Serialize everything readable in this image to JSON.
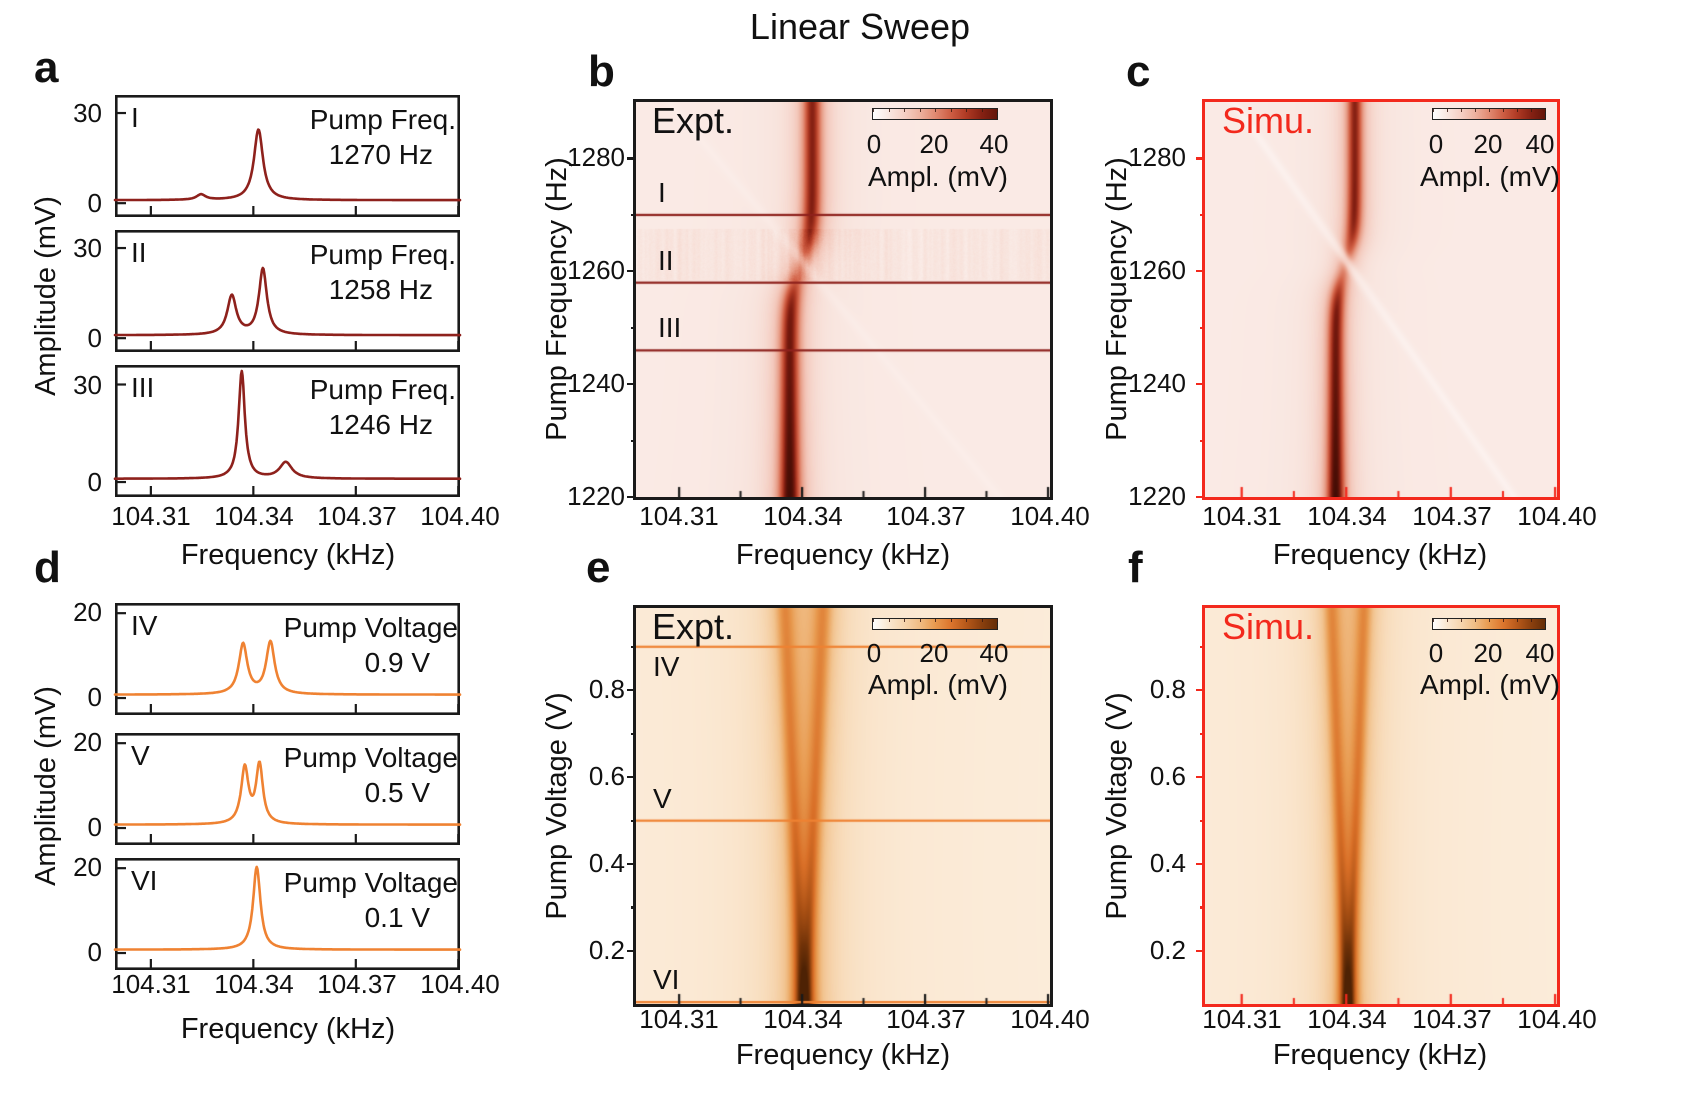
{
  "title": "Linear Sweep",
  "colors": {
    "black": "#1a1a1a",
    "dark_red": "#8e211c",
    "orange": "#ef8232",
    "accent_red": "#f3291d",
    "background": "#ffffff"
  },
  "x_axis": {
    "label": "Frequency (kHz)",
    "tick_labels": [
      "104.31",
      "104.34",
      "104.37",
      "104.40"
    ],
    "tick_values": [
      104.31,
      104.34,
      104.37,
      104.4
    ],
    "minor_tick_values": [
      104.325,
      104.355,
      104.385
    ],
    "range": [
      104.2995,
      104.4005
    ]
  },
  "colorbar": {
    "tick_labels": [
      "0",
      "20",
      "40"
    ],
    "label": "Ampl. (mV)",
    "range": [
      0,
      40
    ]
  },
  "heat_colormaps": {
    "red": [
      [
        0,
        "#ffffff"
      ],
      [
        3,
        "#fbeeea"
      ],
      [
        6,
        "#f8e3dc"
      ],
      [
        12,
        "#f3c7ba"
      ],
      [
        18,
        "#e79c86"
      ],
      [
        24,
        "#d4654a"
      ],
      [
        30,
        "#b03a24"
      ],
      [
        36,
        "#7e1c10"
      ],
      [
        42,
        "#561107"
      ],
      [
        48,
        "#3f0b04"
      ]
    ],
    "orange": [
      [
        0,
        "#ffffff"
      ],
      [
        4,
        "#fbead6"
      ],
      [
        8,
        "#f8ddbd"
      ],
      [
        14,
        "#f2c490"
      ],
      [
        20,
        "#e89a4f"
      ],
      [
        26,
        "#d96f27"
      ],
      [
        32,
        "#a64e13"
      ],
      [
        38,
        "#703208"
      ],
      [
        44,
        "#4e2204"
      ]
    ]
  },
  "panels": {
    "a": {
      "letter": "a",
      "ylabel": "Amplitude (mV)",
      "ytick_hi": "30",
      "ytick_lo": "0"
    },
    "b": {
      "letter": "b",
      "label": "Expt.",
      "ylabel": "Pump Frequency (Hz)",
      "ytick_labels": [
        "1280",
        "1260",
        "1240",
        "1220"
      ]
    },
    "c": {
      "letter": "c",
      "label": "Simu.",
      "ylabel": "Pump Frequency (Hz)",
      "ytick_labels": [
        "1280",
        "1260",
        "1240",
        "1220"
      ]
    },
    "d": {
      "letter": "d",
      "ylabel": "Amplitude (mV)",
      "ytick_hi": "20",
      "ytick_lo": "0"
    },
    "e": {
      "letter": "e",
      "label": "Expt.",
      "ylabel": "Pump Voltage (V)",
      "ytick_labels": [
        "0.8",
        "0.6",
        "0.4",
        "0.2"
      ]
    },
    "f": {
      "letter": "f",
      "label": "Simu.",
      "ylabel": "Pump Voltage (V)",
      "ytick_labels": [
        "0.8",
        "0.6",
        "0.4",
        "0.2"
      ]
    }
  },
  "chart_data": [
    {
      "id": "a",
      "type": "line",
      "color_key": "dark_red",
      "xlabel": "Frequency (kHz)",
      "ylabel": "Amplitude (mV)",
      "y_range": [
        -4.6,
        36
      ],
      "y_ticks": [
        0,
        30
      ],
      "series": [
        {
          "name": "I",
          "annotation": [
            "Pump Freq.",
            "1270 Hz"
          ],
          "baseline": 1,
          "peaks": [
            {
              "c": 104.3415,
              "h": 23.5,
              "w": 0.0016
            },
            {
              "c": 104.3247,
              "h": 1.8,
              "w": 0.0016
            }
          ]
        },
        {
          "name": "II",
          "annotation": [
            "Pump Freq.",
            "1258 Hz"
          ],
          "baseline": 1,
          "peaks": [
            {
              "c": 104.3337,
              "h": 13.0,
              "w": 0.0016
            },
            {
              "c": 104.3428,
              "h": 22.0,
              "w": 0.0014
            }
          ]
        },
        {
          "name": "III",
          "annotation": [
            "Pump Freq.",
            "1246 Hz"
          ],
          "baseline": 1,
          "peaks": [
            {
              "c": 104.3366,
              "h": 33.0,
              "w": 0.0011
            },
            {
              "c": 104.3495,
              "h": 5.0,
              "w": 0.0022
            }
          ]
        }
      ]
    },
    {
      "id": "b",
      "type": "heatmap",
      "variant": "crossing",
      "colormap": "red",
      "label": "Expt.",
      "ylabel": "Pump Frequency (Hz)",
      "y_range": [
        1220,
        1290
      ],
      "y_ticks": [
        1220,
        1240,
        1260,
        1280
      ],
      "y_minor_ticks": [
        1230,
        1250,
        1270
      ],
      "marker_lines": [
        {
          "value": 1270,
          "label": "I",
          "side": "above"
        },
        {
          "value": 1258,
          "label": "II",
          "side": "above"
        },
        {
          "value": 1246,
          "label": "III",
          "side": "above"
        }
      ],
      "noise": true,
      "line_color_key": "dark_red",
      "axis_color_key": "black",
      "label_color_key": "black",
      "model": {
        "crossing_pump": 1261,
        "f_mid": 104.33975,
        "f_shift": 0.00275,
        "tanh_width": 5.5,
        "amp_base": 30,
        "amp_boost": 13,
        "amp_decay": 26,
        "dip_depth": 0.5,
        "dip_width": 5,
        "lor_width": 0.00215,
        "width_boost": 0.0005,
        "baseline": 4,
        "diag_f0": 104.341,
        "diag_slope": 0.00115,
        "diag_width": 0.0017,
        "diag_depth": 0.28
      }
    },
    {
      "id": "c",
      "type": "heatmap",
      "variant": "crossing",
      "colormap": "red",
      "label": "Simu.",
      "ylabel": "Pump Frequency (Hz)",
      "y_range": [
        1220,
        1290
      ],
      "y_ticks": [
        1220,
        1240,
        1260,
        1280
      ],
      "y_minor_ticks": [
        1230,
        1250,
        1270
      ],
      "marker_lines": [],
      "noise": false,
      "line_color_key": "dark_red",
      "axis_color_key": "accent_red",
      "label_color_key": "accent_red",
      "model": {
        "crossing_pump": 1261,
        "f_mid": 104.33975,
        "f_shift": 0.00275,
        "tanh_width": 5.5,
        "amp_base": 30,
        "amp_boost": 13,
        "amp_decay": 26,
        "dip_depth": 0.5,
        "dip_width": 5,
        "lor_width": 0.00215,
        "width_boost": 0.0005,
        "baseline": 4,
        "diag_f0": 104.341,
        "diag_slope": 0.00115,
        "diag_width": 0.0017,
        "diag_depth": 0.55
      }
    },
    {
      "id": "d",
      "type": "line",
      "color_key": "orange",
      "xlabel": "Frequency (kHz)",
      "ylabel": "Amplitude (mV)",
      "y_range": [
        -4,
        22.4
      ],
      "y_ticks": [
        0,
        20
      ],
      "series": [
        {
          "name": "IV",
          "annotation": [
            "Pump Voltage",
            "0.9 V"
          ],
          "baseline": 0.8,
          "peaks": [
            {
              "c": 104.337,
              "h": 11.8,
              "w": 0.0015
            },
            {
              "c": 104.345,
              "h": 12.3,
              "w": 0.0015
            }
          ]
        },
        {
          "name": "V",
          "annotation": [
            "Pump Voltage",
            "0.5 V"
          ],
          "baseline": 0.8,
          "peaks": [
            {
              "c": 104.3375,
              "h": 13.2,
              "w": 0.0013
            },
            {
              "c": 104.3418,
              "h": 13.8,
              "w": 0.0012
            }
          ]
        },
        {
          "name": "VI",
          "annotation": [
            "Pump Voltage",
            "0.1 V"
          ],
          "baseline": 0.8,
          "peaks": [
            {
              "c": 104.341,
              "h": 19.5,
              "w": 0.0013
            }
          ]
        }
      ]
    },
    {
      "id": "e",
      "type": "heatmap",
      "variant": "split",
      "colormap": "orange",
      "label": "Expt.",
      "ylabel": "Pump Voltage (V)",
      "y_range": [
        0.078,
        0.989
      ],
      "y_ticks": [
        0.2,
        0.4,
        0.6,
        0.8
      ],
      "y_minor_ticks": [
        0.3,
        0.5,
        0.7,
        0.9
      ],
      "marker_lines": [
        {
          "value": 0.9,
          "label": "IV",
          "side": "below"
        },
        {
          "value": 0.5,
          "label": "V",
          "side": "above"
        },
        {
          "value": 0.08,
          "label": "VI",
          "side": "above"
        }
      ],
      "noise": false,
      "line_color_key": "orange",
      "axis_color_key": "black",
      "label_color_key": "black",
      "model": {
        "f_center": 104.3405,
        "split_per_volt": 0.0095,
        "amp_base": 13,
        "amp_boost": 11,
        "amp_decay": 0.2,
        "v0": 0.078,
        "lor_width": 0.0016,
        "width_per_volt": 0.0009,
        "halo_amp": 6.5,
        "halo_width": 0.0095,
        "baseline": 3.5
      }
    },
    {
      "id": "f",
      "type": "heatmap",
      "variant": "split",
      "colormap": "orange",
      "label": "Simu.",
      "ylabel": "Pump Voltage (V)",
      "y_range": [
        0.078,
        0.989
      ],
      "y_ticks": [
        0.2,
        0.4,
        0.6,
        0.8
      ],
      "y_minor_ticks": [
        0.3,
        0.5,
        0.7,
        0.9
      ],
      "marker_lines": [],
      "noise": false,
      "line_color_key": "orange",
      "axis_color_key": "accent_red",
      "label_color_key": "accent_red",
      "model": {
        "f_center": 104.3405,
        "split_per_volt": 0.0095,
        "amp_base": 13,
        "amp_boost": 11,
        "amp_decay": 0.2,
        "v0": 0.078,
        "lor_width": 0.0016,
        "width_per_volt": 0.0009,
        "halo_amp": 6.5,
        "halo_width": 0.0095,
        "baseline": 3.5
      }
    }
  ]
}
